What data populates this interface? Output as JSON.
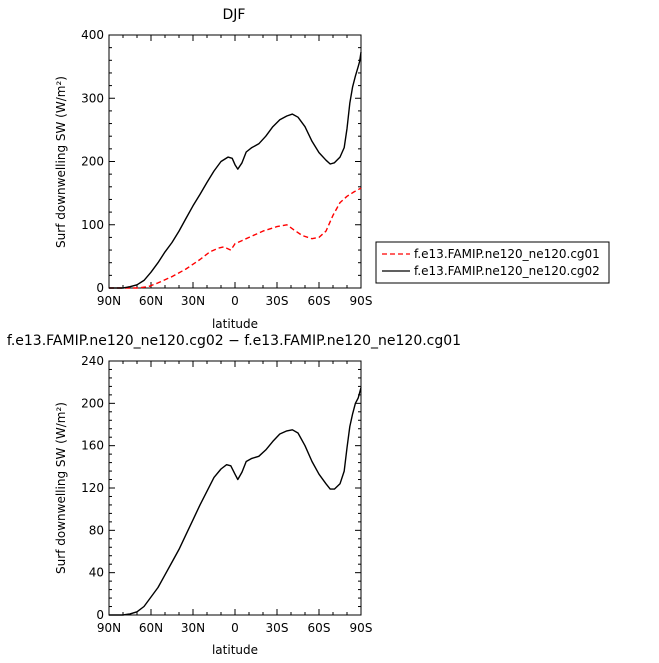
{
  "chart_data": [
    {
      "type": "line",
      "title": "DJF",
      "xlabel": "latitude",
      "ylabel": "Surf downwelling SW (W/m²)",
      "ylim": [
        0,
        400
      ],
      "yticks": [
        0,
        100,
        200,
        300,
        400
      ],
      "xlim": [
        90,
        -90
      ],
      "xticks": [
        90,
        60,
        30,
        0,
        -30,
        -60,
        -90
      ],
      "xtick_labels": [
        "90N",
        "60N",
        "30N",
        "0",
        "30S",
        "60S",
        "90S"
      ],
      "grid": false,
      "legend": "right",
      "series": [
        {
          "name": "f.e13.FAMIP.ne120_ne120.cg01",
          "color": "#ff0000",
          "dash": "dashed",
          "points": [
            [
              90,
              0
            ],
            [
              80,
              0
            ],
            [
              70,
              0
            ],
            [
              62,
              2
            ],
            [
              55,
              8
            ],
            [
              45,
              18
            ],
            [
              35,
              30
            ],
            [
              25,
              45
            ],
            [
              18,
              57
            ],
            [
              12,
              63
            ],
            [
              8,
              65
            ],
            [
              3,
              60
            ],
            [
              0,
              70
            ],
            [
              -5,
              75
            ],
            [
              -10,
              80
            ],
            [
              -20,
              90
            ],
            [
              -30,
              97
            ],
            [
              -37,
              100
            ],
            [
              -42,
              92
            ],
            [
              -48,
              83
            ],
            [
              -55,
              78
            ],
            [
              -60,
              80
            ],
            [
              -65,
              90
            ],
            [
              -70,
              115
            ],
            [
              -75,
              135
            ],
            [
              -80,
              145
            ],
            [
              -85,
              152
            ],
            [
              -90,
              158
            ]
          ]
        },
        {
          "name": "f.e13.FAMIP.ne120_ne120.cg02",
          "color": "#000000",
          "dash": "solid",
          "points": [
            [
              90,
              0
            ],
            [
              80,
              0
            ],
            [
              75,
              2
            ],
            [
              70,
              5
            ],
            [
              65,
              12
            ],
            [
              60,
              25
            ],
            [
              55,
              40
            ],
            [
              50,
              57
            ],
            [
              45,
              72
            ],
            [
              40,
              90
            ],
            [
              35,
              110
            ],
            [
              30,
              130
            ],
            [
              25,
              148
            ],
            [
              20,
              167
            ],
            [
              15,
              185
            ],
            [
              10,
              200
            ],
            [
              5,
              207
            ],
            [
              2,
              205
            ],
            [
              0,
              195
            ],
            [
              -2,
              188
            ],
            [
              -5,
              198
            ],
            [
              -8,
              215
            ],
            [
              -12,
              222
            ],
            [
              -17,
              228
            ],
            [
              -22,
              240
            ],
            [
              -27,
              255
            ],
            [
              -32,
              266
            ],
            [
              -37,
              272
            ],
            [
              -41,
              275
            ],
            [
              -45,
              270
            ],
            [
              -50,
              255
            ],
            [
              -55,
              232
            ],
            [
              -60,
              214
            ],
            [
              -65,
              202
            ],
            [
              -68,
              196
            ],
            [
              -71,
              198
            ],
            [
              -75,
              207
            ],
            [
              -78,
              222
            ],
            [
              -80,
              252
            ],
            [
              -82,
              292
            ],
            [
              -84,
              318
            ],
            [
              -86,
              335
            ],
            [
              -88,
              350
            ],
            [
              -89,
              358
            ],
            [
              -90,
              373
            ]
          ]
        }
      ]
    },
    {
      "type": "line",
      "title": "f.e13.FAMIP.ne120_ne120.cg02 − f.e13.FAMIP.ne120_ne120.cg01",
      "xlabel": "latitude",
      "ylabel": "Surf downwelling SW (W/m²)",
      "ylim": [
        0,
        240
      ],
      "yticks": [
        0,
        40,
        80,
        120,
        160,
        200,
        240
      ],
      "xlim": [
        90,
        -90
      ],
      "xticks": [
        90,
        60,
        30,
        0,
        -30,
        -60,
        -90
      ],
      "xtick_labels": [
        "90N",
        "60N",
        "30N",
        "0",
        "30S",
        "60S",
        "90S"
      ],
      "grid": false,
      "series": [
        {
          "name": "",
          "color": "#000000",
          "dash": "solid",
          "points": [
            [
              90,
              0
            ],
            [
              80,
              0
            ],
            [
              75,
              1
            ],
            [
              70,
              3
            ],
            [
              65,
              8
            ],
            [
              60,
              17
            ],
            [
              55,
              26
            ],
            [
              50,
              38
            ],
            [
              45,
              50
            ],
            [
              40,
              62
            ],
            [
              35,
              76
            ],
            [
              30,
              90
            ],
            [
              25,
              104
            ],
            [
              20,
              117
            ],
            [
              15,
              130
            ],
            [
              10,
              138
            ],
            [
              6,
              142
            ],
            [
              3,
              141
            ],
            [
              0,
              133
            ],
            [
              -2,
              128
            ],
            [
              -5,
              135
            ],
            [
              -8,
              145
            ],
            [
              -12,
              148
            ],
            [
              -17,
              150
            ],
            [
              -22,
              156
            ],
            [
              -27,
              164
            ],
            [
              -32,
              171
            ],
            [
              -37,
              174
            ],
            [
              -41,
              175
            ],
            [
              -45,
              172
            ],
            [
              -50,
              160
            ],
            [
              -55,
              145
            ],
            [
              -60,
              133
            ],
            [
              -65,
              124
            ],
            [
              -68,
              119
            ],
            [
              -71,
              119
            ],
            [
              -75,
              124
            ],
            [
              -78,
              136
            ],
            [
              -80,
              158
            ],
            [
              -82,
              178
            ],
            [
              -84,
              190
            ],
            [
              -86,
              200
            ],
            [
              -88,
              205
            ],
            [
              -89,
              210
            ],
            [
              -90,
              215
            ]
          ]
        }
      ]
    }
  ]
}
